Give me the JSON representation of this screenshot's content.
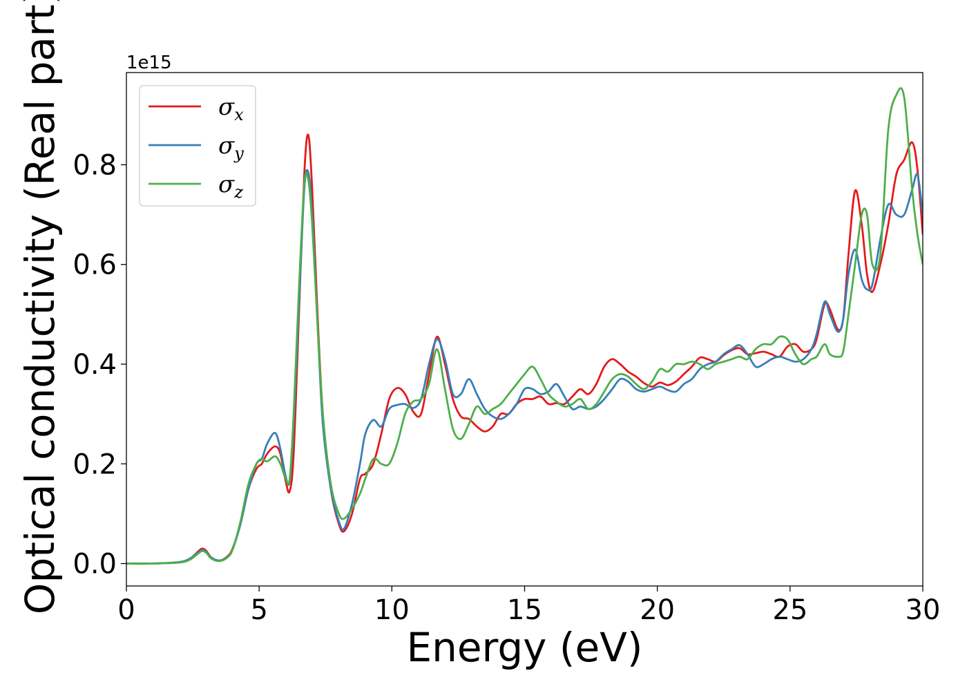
{
  "chart_data": {
    "type": "line",
    "xlabel": "Energy (eV)",
    "ylabel": "Optical conductivity (Real part)",
    "y_offset_label": "1e15",
    "xlim": [
      0,
      30
    ],
    "ylim": [
      -0.045,
      0.985
    ],
    "x_ticks": [
      0,
      5,
      10,
      15,
      20,
      25,
      30
    ],
    "x_tick_labels": [
      "0",
      "5",
      "10",
      "15",
      "20",
      "25",
      "30"
    ],
    "y_ticks": [
      0.0,
      0.2,
      0.4,
      0.6,
      0.8
    ],
    "y_tick_labels": [
      "0.0",
      "0.2",
      "0.4",
      "0.6",
      "0.8"
    ],
    "grid": false,
    "legend_position": "top-left",
    "series": [
      {
        "name": "σx",
        "symbol": "σ",
        "subscript": "x",
        "color": "#e41a1c",
        "x": [
          0,
          1,
          2,
          2.4,
          2.7,
          2.85,
          3.0,
          3.2,
          3.5,
          3.8,
          4.0,
          4.3,
          4.6,
          4.9,
          5.1,
          5.3,
          5.6,
          5.8,
          6.0,
          6.15,
          6.3,
          6.5,
          6.7,
          6.85,
          7.0,
          7.2,
          7.4,
          7.7,
          8.0,
          8.2,
          8.5,
          8.8,
          9.0,
          9.3,
          9.6,
          9.9,
          10.2,
          10.5,
          10.8,
          11.1,
          11.4,
          11.7,
          12.0,
          12.3,
          12.6,
          12.9,
          13.2,
          13.5,
          13.8,
          14.1,
          14.4,
          14.7,
          15.0,
          15.3,
          15.6,
          15.9,
          16.2,
          16.5,
          16.8,
          17.1,
          17.4,
          17.7,
          18.0,
          18.3,
          18.6,
          18.9,
          19.2,
          19.5,
          19.8,
          20.1,
          20.4,
          20.7,
          21.0,
          21.3,
          21.6,
          21.9,
          22.2,
          22.5,
          22.8,
          23.1,
          23.4,
          23.7,
          24.0,
          24.3,
          24.6,
          24.9,
          25.2,
          25.5,
          25.8,
          26.0,
          26.3,
          26.5,
          26.8,
          27.0,
          27.2,
          27.45,
          27.7,
          27.9,
          28.1,
          28.4,
          28.7,
          29.0,
          29.3,
          29.6,
          29.8,
          30.0
        ],
        "y": [
          0.0,
          0.0,
          0.003,
          0.01,
          0.024,
          0.03,
          0.026,
          0.012,
          0.006,
          0.014,
          0.03,
          0.08,
          0.15,
          0.19,
          0.2,
          0.22,
          0.235,
          0.22,
          0.165,
          0.145,
          0.22,
          0.5,
          0.78,
          0.86,
          0.75,
          0.5,
          0.3,
          0.15,
          0.08,
          0.065,
          0.1,
          0.17,
          0.18,
          0.2,
          0.26,
          0.33,
          0.352,
          0.34,
          0.305,
          0.3,
          0.38,
          0.455,
          0.4,
          0.33,
          0.295,
          0.29,
          0.275,
          0.265,
          0.275,
          0.3,
          0.3,
          0.32,
          0.33,
          0.33,
          0.335,
          0.32,
          0.322,
          0.32,
          0.335,
          0.35,
          0.34,
          0.36,
          0.395,
          0.41,
          0.4,
          0.385,
          0.375,
          0.362,
          0.355,
          0.363,
          0.358,
          0.365,
          0.38,
          0.395,
          0.413,
          0.41,
          0.405,
          0.418,
          0.428,
          0.432,
          0.42,
          0.422,
          0.425,
          0.42,
          0.415,
          0.435,
          0.44,
          0.425,
          0.43,
          0.45,
          0.52,
          0.51,
          0.47,
          0.49,
          0.62,
          0.748,
          0.68,
          0.58,
          0.545,
          0.6,
          0.68,
          0.78,
          0.81,
          0.845,
          0.79,
          0.66
        ]
      },
      {
        "name": "σy",
        "symbol": "σ",
        "subscript": "y",
        "color": "#377eb8",
        "x": [
          0,
          1,
          2,
          2.4,
          2.7,
          2.85,
          3.0,
          3.2,
          3.5,
          3.8,
          4.0,
          4.3,
          4.6,
          4.9,
          5.1,
          5.3,
          5.6,
          5.8,
          6.0,
          6.15,
          6.3,
          6.5,
          6.7,
          6.85,
          7.0,
          7.2,
          7.4,
          7.7,
          8.0,
          8.2,
          8.5,
          8.8,
          9.0,
          9.3,
          9.6,
          9.9,
          10.2,
          10.5,
          10.8,
          11.1,
          11.4,
          11.7,
          12.0,
          12.3,
          12.6,
          12.9,
          13.2,
          13.5,
          13.8,
          14.1,
          14.4,
          14.7,
          15.0,
          15.3,
          15.6,
          15.9,
          16.2,
          16.5,
          16.8,
          17.1,
          17.4,
          17.7,
          18.0,
          18.3,
          18.6,
          18.9,
          19.2,
          19.5,
          19.8,
          20.1,
          20.4,
          20.7,
          21.0,
          21.3,
          21.6,
          21.9,
          22.2,
          22.5,
          22.8,
          23.1,
          23.4,
          23.7,
          24.0,
          24.3,
          24.6,
          24.9,
          25.2,
          25.5,
          25.8,
          26.0,
          26.3,
          26.5,
          26.8,
          27.0,
          27.2,
          27.45,
          27.7,
          27.9,
          28.1,
          28.4,
          28.7,
          29.0,
          29.3,
          29.6,
          29.8,
          30.0
        ],
        "y": [
          0.0,
          0.0,
          0.003,
          0.01,
          0.022,
          0.027,
          0.024,
          0.012,
          0.006,
          0.013,
          0.028,
          0.08,
          0.15,
          0.2,
          0.21,
          0.24,
          0.262,
          0.23,
          0.175,
          0.165,
          0.28,
          0.52,
          0.75,
          0.785,
          0.7,
          0.48,
          0.28,
          0.15,
          0.085,
          0.07,
          0.12,
          0.2,
          0.26,
          0.288,
          0.275,
          0.31,
          0.318,
          0.32,
          0.312,
          0.33,
          0.4,
          0.45,
          0.41,
          0.34,
          0.34,
          0.37,
          0.34,
          0.31,
          0.295,
          0.29,
          0.3,
          0.32,
          0.35,
          0.35,
          0.34,
          0.345,
          0.36,
          0.335,
          0.31,
          0.315,
          0.31,
          0.315,
          0.33,
          0.35,
          0.37,
          0.365,
          0.35,
          0.345,
          0.35,
          0.355,
          0.348,
          0.345,
          0.36,
          0.37,
          0.39,
          0.4,
          0.405,
          0.42,
          0.43,
          0.438,
          0.42,
          0.395,
          0.4,
          0.41,
          0.415,
          0.41,
          0.405,
          0.41,
          0.43,
          0.46,
          0.525,
          0.5,
          0.465,
          0.49,
          0.58,
          0.63,
          0.57,
          0.55,
          0.56,
          0.65,
          0.72,
          0.7,
          0.7,
          0.75,
          0.78,
          0.7
        ]
      },
      {
        "name": "σz",
        "symbol": "σ",
        "subscript": "z",
        "color": "#4daf4a",
        "x": [
          0,
          1,
          2,
          2.4,
          2.7,
          2.85,
          3.0,
          3.2,
          3.5,
          3.8,
          4.0,
          4.3,
          4.6,
          4.9,
          5.1,
          5.3,
          5.6,
          5.8,
          6.0,
          6.15,
          6.3,
          6.5,
          6.7,
          6.85,
          7.0,
          7.2,
          7.4,
          7.7,
          8.0,
          8.2,
          8.5,
          8.8,
          9.0,
          9.3,
          9.6,
          9.9,
          10.2,
          10.5,
          10.8,
          11.1,
          11.4,
          11.7,
          12.0,
          12.3,
          12.6,
          12.9,
          13.2,
          13.5,
          13.8,
          14.1,
          14.4,
          14.7,
          15.0,
          15.3,
          15.6,
          15.9,
          16.2,
          16.5,
          16.8,
          17.1,
          17.4,
          17.7,
          18.0,
          18.3,
          18.6,
          18.9,
          19.2,
          19.5,
          19.8,
          20.1,
          20.4,
          20.7,
          21.0,
          21.3,
          21.6,
          21.9,
          22.2,
          22.5,
          22.8,
          23.1,
          23.4,
          23.7,
          24.0,
          24.3,
          24.6,
          24.9,
          25.2,
          25.5,
          25.8,
          26.0,
          26.3,
          26.5,
          26.8,
          27.0,
          27.2,
          27.45,
          27.7,
          27.9,
          28.1,
          28.4,
          28.7,
          29.0,
          29.3,
          29.6,
          29.8,
          30.0
        ],
        "y": [
          0.0,
          0.0,
          0.002,
          0.008,
          0.02,
          0.025,
          0.022,
          0.01,
          0.005,
          0.012,
          0.028,
          0.085,
          0.16,
          0.2,
          0.21,
          0.205,
          0.215,
          0.2,
          0.17,
          0.17,
          0.3,
          0.55,
          0.76,
          0.77,
          0.68,
          0.48,
          0.3,
          0.16,
          0.1,
          0.09,
          0.11,
          0.14,
          0.17,
          0.21,
          0.2,
          0.2,
          0.24,
          0.3,
          0.325,
          0.33,
          0.36,
          0.43,
          0.35,
          0.27,
          0.25,
          0.28,
          0.315,
          0.3,
          0.31,
          0.32,
          0.34,
          0.36,
          0.38,
          0.395,
          0.37,
          0.34,
          0.325,
          0.315,
          0.32,
          0.33,
          0.31,
          0.32,
          0.345,
          0.37,
          0.38,
          0.375,
          0.36,
          0.35,
          0.365,
          0.39,
          0.385,
          0.4,
          0.4,
          0.405,
          0.4,
          0.39,
          0.4,
          0.405,
          0.41,
          0.415,
          0.41,
          0.43,
          0.44,
          0.44,
          0.455,
          0.45,
          0.42,
          0.4,
          0.41,
          0.415,
          0.44,
          0.42,
          0.415,
          0.425,
          0.5,
          0.6,
          0.7,
          0.7,
          0.6,
          0.62,
          0.87,
          0.94,
          0.935,
          0.75,
          0.66,
          0.6
        ]
      }
    ]
  }
}
